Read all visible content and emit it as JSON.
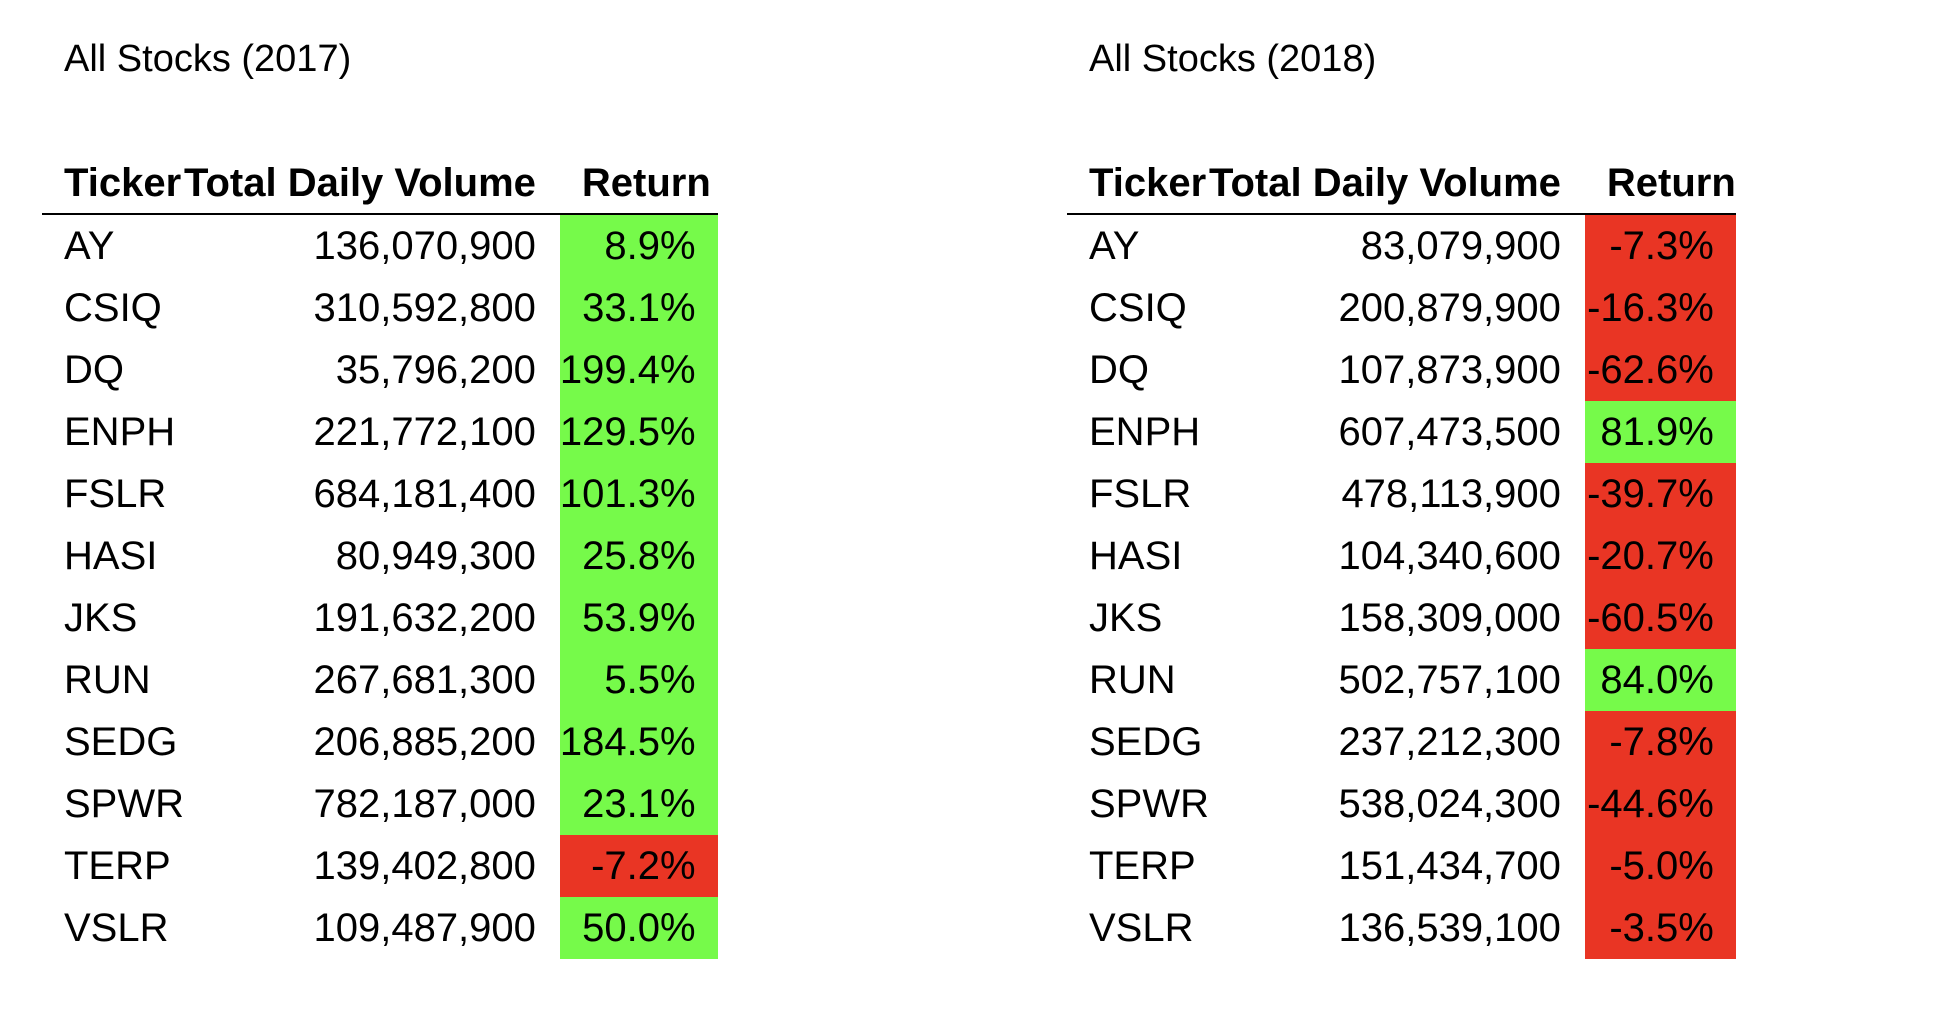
{
  "colors": {
    "positive": "#76FA4A",
    "negative": "#E93524",
    "rule": "#000000"
  },
  "tables": [
    {
      "title": "All Stocks (2017)",
      "headers": [
        "Ticker",
        "Total Daily Volume",
        "Return"
      ],
      "rows": [
        {
          "ticker": "AY",
          "volume": "136,070,900",
          "return": "8.9%",
          "positive": true
        },
        {
          "ticker": "CSIQ",
          "volume": "310,592,800",
          "return": "33.1%",
          "positive": true
        },
        {
          "ticker": "DQ",
          "volume": "35,796,200",
          "return": "199.4%",
          "positive": true
        },
        {
          "ticker": "ENPH",
          "volume": "221,772,100",
          "return": "129.5%",
          "positive": true
        },
        {
          "ticker": "FSLR",
          "volume": "684,181,400",
          "return": "101.3%",
          "positive": true
        },
        {
          "ticker": "HASI",
          "volume": "80,949,300",
          "return": "25.8%",
          "positive": true
        },
        {
          "ticker": "JKS",
          "volume": "191,632,200",
          "return": "53.9%",
          "positive": true
        },
        {
          "ticker": "RUN",
          "volume": "267,681,300",
          "return": "5.5%",
          "positive": true
        },
        {
          "ticker": "SEDG",
          "volume": "206,885,200",
          "return": "184.5%",
          "positive": true
        },
        {
          "ticker": "SPWR",
          "volume": "782,187,000",
          "return": "23.1%",
          "positive": true
        },
        {
          "ticker": "TERP",
          "volume": "139,402,800",
          "return": "-7.2%",
          "positive": false
        },
        {
          "ticker": "VSLR",
          "volume": "109,487,900",
          "return": "50.0%",
          "positive": true
        }
      ]
    },
    {
      "title": "All Stocks (2018)",
      "headers": [
        "Ticker",
        "Total Daily Volume",
        "Return"
      ],
      "rows": [
        {
          "ticker": "AY",
          "volume": "83,079,900",
          "return": "-7.3%",
          "positive": false
        },
        {
          "ticker": "CSIQ",
          "volume": "200,879,900",
          "return": "-16.3%",
          "positive": false
        },
        {
          "ticker": "DQ",
          "volume": "107,873,900",
          "return": "-62.6%",
          "positive": false
        },
        {
          "ticker": "ENPH",
          "volume": "607,473,500",
          "return": "81.9%",
          "positive": true
        },
        {
          "ticker": "FSLR",
          "volume": "478,113,900",
          "return": "-39.7%",
          "positive": false
        },
        {
          "ticker": "HASI",
          "volume": "104,340,600",
          "return": "-20.7%",
          "positive": false
        },
        {
          "ticker": "JKS",
          "volume": "158,309,000",
          "return": "-60.5%",
          "positive": false
        },
        {
          "ticker": "RUN",
          "volume": "502,757,100",
          "return": "84.0%",
          "positive": true
        },
        {
          "ticker": "SEDG",
          "volume": "237,212,300",
          "return": "-7.8%",
          "positive": false
        },
        {
          "ticker": "SPWR",
          "volume": "538,024,300",
          "return": "-44.6%",
          "positive": false
        },
        {
          "ticker": "TERP",
          "volume": "151,434,700",
          "return": "-5.0%",
          "positive": false
        },
        {
          "ticker": "VSLR",
          "volume": "136,539,100",
          "return": "-3.5%",
          "positive": false
        }
      ]
    }
  ]
}
